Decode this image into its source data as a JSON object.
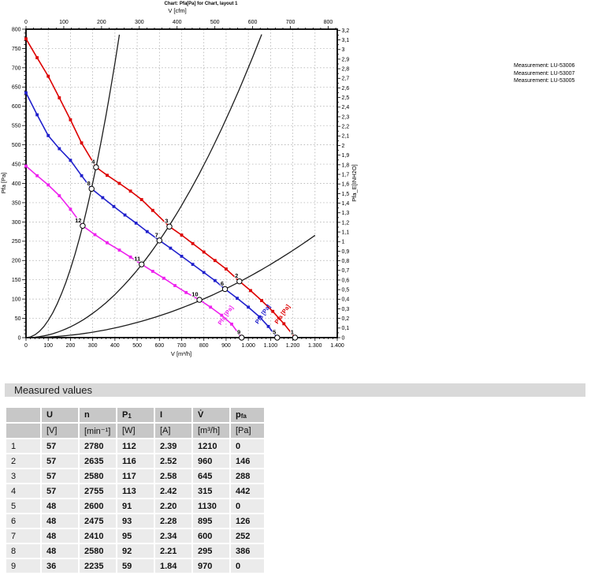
{
  "chart_data": {
    "type": "line",
    "title": "Chart: Pfa[Pa] for Chart, layout 1",
    "axes": {
      "bottom": {
        "label": "V [m³/h]",
        "min": 0,
        "max": 1400,
        "major": 100,
        "minor": 20
      },
      "top": {
        "label": "V [cfm]",
        "min": 0,
        "max": 824,
        "major": 100,
        "minor": 20,
        "label_max": 800
      },
      "left": {
        "label": "Pfa [Pa]",
        "min": 0,
        "max": 800,
        "major": 50,
        "minor": 10
      },
      "right": {
        "label": "Pfa_E[INH2O]",
        "min": 0,
        "max": 3.2,
        "major": 0.1,
        "minor": 0.05,
        "decimal_comma": true
      }
    },
    "grid": {
      "x_step": 100,
      "y_step": 50,
      "color": "#a3a3a3",
      "style": "dashed"
    },
    "series": [
      {
        "name": "Measurement: LU-53006",
        "color": "#dd0000",
        "curve_label": "Pfa [Pa]",
        "label_at": [
          1160,
          58
        ],
        "points": [
          [
            0,
            775
          ],
          [
            50,
            726
          ],
          [
            100,
            678
          ],
          [
            150,
            622
          ],
          [
            200,
            565
          ],
          [
            250,
            505
          ],
          [
            315,
            442
          ],
          [
            365,
            421
          ],
          [
            420,
            400
          ],
          [
            470,
            380
          ],
          [
            520,
            358
          ],
          [
            570,
            330
          ],
          [
            645,
            288
          ],
          [
            700,
            266
          ],
          [
            750,
            244
          ],
          [
            800,
            222
          ],
          [
            850,
            200
          ],
          [
            900,
            178
          ],
          [
            960,
            146
          ],
          [
            1010,
            122
          ],
          [
            1060,
            96
          ],
          [
            1110,
            68
          ],
          [
            1160,
            36
          ],
          [
            1210,
            0
          ]
        ]
      },
      {
        "name": "Measurement: LU-53007",
        "color": "#2020cc",
        "curve_label": "Pfa [Pa]",
        "label_at": [
          1072,
          58
        ],
        "points": [
          [
            0,
            635
          ],
          [
            50,
            578
          ],
          [
            100,
            524
          ],
          [
            150,
            490
          ],
          [
            200,
            460
          ],
          [
            250,
            420
          ],
          [
            295,
            386
          ],
          [
            345,
            363
          ],
          [
            395,
            340
          ],
          [
            445,
            318
          ],
          [
            495,
            297
          ],
          [
            545,
            275
          ],
          [
            600,
            252
          ],
          [
            650,
            232
          ],
          [
            700,
            211
          ],
          [
            750,
            190
          ],
          [
            800,
            169
          ],
          [
            850,
            148
          ],
          [
            895,
            126
          ],
          [
            950,
            102
          ],
          [
            1000,
            79
          ],
          [
            1050,
            54
          ],
          [
            1090,
            29
          ],
          [
            1130,
            0
          ]
        ]
      },
      {
        "name": "Measurement: LU-53005",
        "color": "#ee22ee",
        "curve_label": "Pfa [Pa]",
        "label_at": [
          905,
          55
        ],
        "points": [
          [
            0,
            445
          ],
          [
            50,
            420
          ],
          [
            100,
            396
          ],
          [
            150,
            368
          ],
          [
            200,
            333
          ],
          [
            255,
            290
          ],
          [
            310,
            267
          ],
          [
            365,
            246
          ],
          [
            420,
            227
          ],
          [
            470,
            209
          ],
          [
            520,
            190
          ],
          [
            570,
            172
          ],
          [
            620,
            154
          ],
          [
            670,
            135
          ],
          [
            720,
            117
          ],
          [
            780,
            98
          ],
          [
            830,
            79
          ],
          [
            880,
            58
          ],
          [
            925,
            35
          ],
          [
            970,
            0
          ]
        ]
      }
    ],
    "system_curves": [
      {
        "k": 0.004454,
        "v_end": 430
      },
      {
        "k": 0.0007,
        "v_end": 1075
      },
      {
        "k": 0.000157,
        "v_end": 1300
      }
    ],
    "operating_points": [
      {
        "id": "1",
        "v": 1210,
        "p": 0
      },
      {
        "id": "2",
        "v": 960,
        "p": 146
      },
      {
        "id": "3",
        "v": 645,
        "p": 288
      },
      {
        "id": "4",
        "v": 315,
        "p": 442
      },
      {
        "id": "5",
        "v": 1130,
        "p": 0
      },
      {
        "id": "6",
        "v": 895,
        "p": 126
      },
      {
        "id": "7",
        "v": 600,
        "p": 252
      },
      {
        "id": "8",
        "v": 295,
        "p": 386
      },
      {
        "id": "9",
        "v": 970,
        "p": 0
      },
      {
        "id": "10",
        "v": 780,
        "p": 98
      },
      {
        "id": "11",
        "v": 520,
        "p": 190
      },
      {
        "id": "12",
        "v": 255,
        "p": 290
      }
    ]
  },
  "legend": {
    "items": [
      "Measurement: LU-53006",
      "Measurement: LU-53007",
      "Measurement: LU-53005"
    ]
  },
  "section": {
    "title": "Measured values"
  },
  "table": {
    "columns": [
      {
        "label": "",
        "sub": "",
        "unit": ""
      },
      {
        "label": "U",
        "sub": "",
        "unit": "[V]"
      },
      {
        "label": "n",
        "sub": "",
        "unit": "[min⁻¹]"
      },
      {
        "label": "P",
        "sub": "1",
        "unit": "[W]"
      },
      {
        "label": "I",
        "sub": "",
        "unit": "[A]"
      },
      {
        "label": "V̇",
        "sub": "",
        "unit": "[m³/h]"
      },
      {
        "label": "p",
        "sub": "fa",
        "unit": "[Pa]"
      }
    ],
    "rows": [
      [
        "1",
        "57",
        "2780",
        "112",
        "2.39",
        "1210",
        "0"
      ],
      [
        "2",
        "57",
        "2635",
        "116",
        "2.52",
        "960",
        "146"
      ],
      [
        "3",
        "57",
        "2580",
        "117",
        "2.58",
        "645",
        "288"
      ],
      [
        "4",
        "57",
        "2755",
        "113",
        "2.42",
        "315",
        "442"
      ],
      [
        "5",
        "48",
        "2600",
        "91",
        "2.20",
        "1130",
        "0"
      ],
      [
        "6",
        "48",
        "2475",
        "93",
        "2.28",
        "895",
        "126"
      ],
      [
        "7",
        "48",
        "2410",
        "95",
        "2.34",
        "600",
        "252"
      ],
      [
        "8",
        "48",
        "2580",
        "92",
        "2.21",
        "295",
        "386"
      ],
      [
        "9",
        "36",
        "2235",
        "59",
        "1.84",
        "970",
        "0"
      ]
    ]
  }
}
